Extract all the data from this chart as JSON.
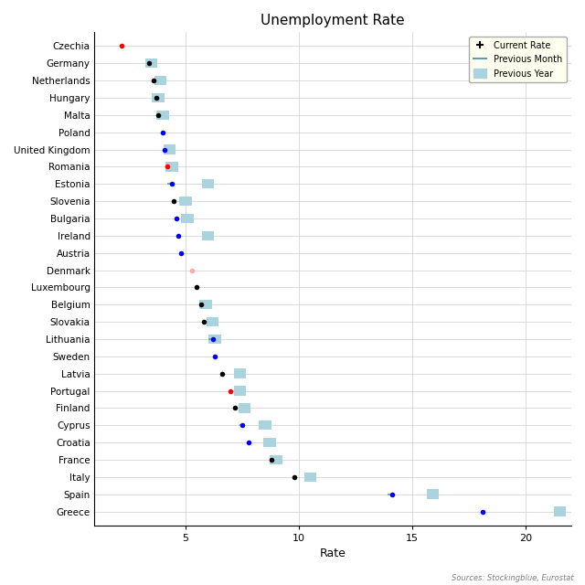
{
  "title": "Unemployment Rate",
  "xlabel": "Rate",
  "source_text": "Sources: Stockingblue, Eurostat",
  "countries": [
    "Czechia",
    "Germany",
    "Netherlands",
    "Hungary",
    "Malta",
    "Poland",
    "United Kingdom",
    "Romania",
    "Estonia",
    "Slovenia",
    "Bulgaria",
    "Ireland",
    "Austria",
    "Denmark",
    "Luxembourg",
    "Belgium",
    "Slovakia",
    "Lithuania",
    "Sweden",
    "Latvia",
    "Portugal",
    "Finland",
    "Cyprus",
    "Croatia",
    "France",
    "Italy",
    "Spain",
    "Greece"
  ],
  "current_rate": [
    2.2,
    3.4,
    3.6,
    3.7,
    3.8,
    4.0,
    4.1,
    4.2,
    4.4,
    4.5,
    4.6,
    4.7,
    4.8,
    5.3,
    5.5,
    5.7,
    5.8,
    6.2,
    6.3,
    6.6,
    7.0,
    7.2,
    7.5,
    7.8,
    8.8,
    9.8,
    14.1,
    18.1
  ],
  "previous_month": [
    null,
    null,
    null,
    null,
    null,
    null,
    null,
    null,
    4.2,
    null,
    null,
    null,
    null,
    null,
    null,
    null,
    null,
    6.0,
    6.2,
    null,
    null,
    null,
    7.4,
    null,
    null,
    null,
    13.9,
    null
  ],
  "previous_year": [
    null,
    3.5,
    3.9,
    3.8,
    4.0,
    null,
    4.3,
    4.4,
    6.0,
    5.0,
    5.1,
    6.0,
    null,
    null,
    null,
    5.9,
    6.2,
    6.3,
    null,
    7.4,
    7.4,
    7.6,
    8.5,
    8.7,
    9.0,
    10.5,
    15.9,
    21.5
  ],
  "current_colors": [
    "red",
    "black",
    "black",
    "black",
    "black",
    "blue",
    "blue",
    "red",
    "blue",
    "black",
    "blue",
    "blue",
    "blue",
    "#ffaaaa",
    "black",
    "black",
    "black",
    "blue",
    "blue",
    "black",
    "red",
    "black",
    "blue",
    "blue",
    "black",
    "black",
    "blue",
    "blue"
  ],
  "prev_month_color": "#6699aa",
  "prev_year_color": "#aad4dd",
  "xlim": [
    1,
    22
  ],
  "xticks": [
    5,
    10,
    15,
    20
  ],
  "background_color": "#ffffff",
  "grid_color": "#cccccc",
  "legend_bg": "#fffff0"
}
